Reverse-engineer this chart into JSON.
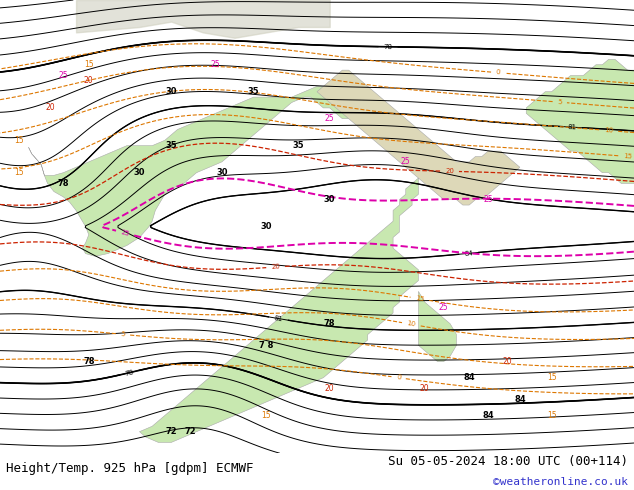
{
  "title_left": "Height/Temp. 925 hPa [gdpm] ECMWF",
  "title_right": "Su 05-05-2024 18:00 UTC (00+114)",
  "credit": "©weatheronline.co.uk",
  "background_color": "#ffffff",
  "sea_color": "#e8e8e8",
  "land_green": "#c8e8b0",
  "land_green2": "#b8dc98",
  "border_color": "#aaaaaa",
  "black_contour_color": "#000000",
  "red_contour_color": "#cc2200",
  "orange_contour_color": "#dd7700",
  "magenta_contour_color": "#dd00aa",
  "title_fontsize": 9,
  "credit_fontsize": 8,
  "credit_color": "#3333cc",
  "figsize": [
    6.34,
    4.9
  ],
  "dpi": 100,
  "lon_min": -22,
  "lon_max": 78,
  "lat_min": -42,
  "lat_max": 42
}
